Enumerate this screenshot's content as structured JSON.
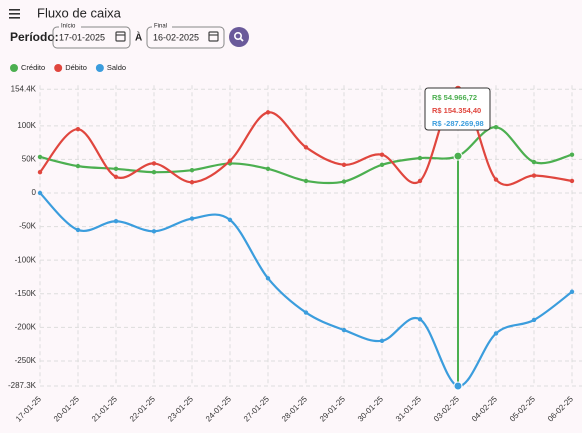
{
  "header": {
    "title": "Fluxo de caixa"
  },
  "filters": {
    "period_label": "Período:",
    "start": {
      "label": "Início",
      "value": "17-01-2025"
    },
    "separator": "À",
    "end": {
      "label": "Final",
      "value": "16-02-2025"
    }
  },
  "chart_data": {
    "type": "line",
    "categories": [
      "17-01-25",
      "20-01-25",
      "21-01-25",
      "22-01-25",
      "23-01-25",
      "24-01-25",
      "27-01-25",
      "28-01-25",
      "29-01-25",
      "30-01-25",
      "31-01-25",
      "03-02-25",
      "04-02-25",
      "05-02-25",
      "06-02-25"
    ],
    "series": [
      {
        "name": "Crédito",
        "color": "#4caf50",
        "values": [
          53600,
          40000,
          36000,
          31000,
          34000,
          44000,
          36000,
          18000,
          17000,
          42000,
          52000,
          54966.72,
          98000,
          46000,
          57000
        ],
        "value_labels": [
          null,
          null,
          null,
          null,
          null,
          null,
          null,
          null,
          null,
          null,
          null,
          "R$ 54.966,72",
          null,
          null,
          null
        ]
      },
      {
        "name": "Débito",
        "color": "#e0463e",
        "values": [
          31000,
          95000,
          24000,
          44000,
          16000,
          48000,
          120000,
          68000,
          42000,
          57000,
          18000,
          154354.4,
          20000,
          26000,
          18000
        ],
        "value_labels": [
          null,
          null,
          null,
          null,
          null,
          null,
          null,
          null,
          null,
          null,
          null,
          "R$ 154.354,40",
          null,
          null,
          null
        ]
      },
      {
        "name": "Saldo",
        "color": "#3b9ddd",
        "values": [
          0,
          -55000,
          -42000,
          -57000,
          -38000,
          -40000,
          -127000,
          -178000,
          -204000,
          -220000,
          -188000,
          -287269.98,
          -209000,
          -189000,
          -147000
        ],
        "value_labels": [
          null,
          null,
          null,
          null,
          null,
          null,
          null,
          null,
          null,
          null,
          null,
          "R$ -287.269,98",
          null,
          null,
          null
        ]
      }
    ],
    "ylim": [
      -287269.98,
      154354.4
    ],
    "yticks": [
      {
        "value": -287269.98,
        "label": "-287.3K"
      },
      {
        "value": -250000,
        "label": "-250K"
      },
      {
        "value": -200000,
        "label": "-200K"
      },
      {
        "value": -150000,
        "label": "-150K"
      },
      {
        "value": -100000,
        "label": "-100K"
      },
      {
        "value": -50000,
        "label": "-50K"
      },
      0,
      {
        "value": 50000,
        "label": "50K"
      },
      {
        "value": 100000,
        "label": "100K"
      },
      {
        "value": 154354.4,
        "label": "154.4K"
      }
    ],
    "grid": true,
    "legend": "top-left",
    "highlight_index": 11
  }
}
